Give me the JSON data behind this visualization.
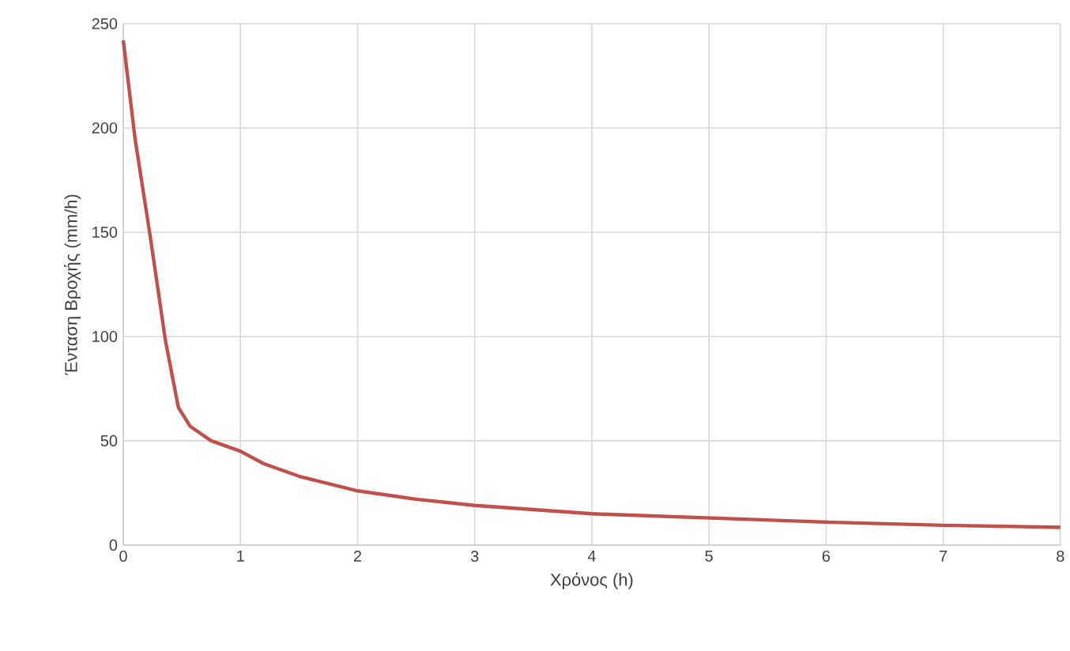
{
  "chart_data": {
    "type": "line",
    "xlabel": "Χρόνος (h)",
    "ylabel": "Ένταση Βροχής (mm/h)",
    "series": [
      {
        "color": "#c0504d",
        "x": [
          0,
          0.1,
          0.23,
          0.36,
          0.47,
          0.57,
          0.75,
          1,
          1.2,
          1.5,
          2,
          2.5,
          3,
          3.5,
          4,
          5,
          6,
          7,
          8
        ],
        "values": [
          242,
          195,
          148,
          98,
          66,
          57,
          50,
          45,
          39,
          33,
          26,
          22,
          19,
          17,
          15,
          13,
          11,
          9.5,
          8.5
        ]
      }
    ],
    "xlim": [
      0,
      8
    ],
    "ylim": [
      0,
      250
    ],
    "xticks": [
      0,
      1,
      2,
      3,
      4,
      5,
      6,
      7,
      8
    ],
    "yticks": [
      0,
      50,
      100,
      150,
      200,
      250
    ],
    "grid": true,
    "marker": "none",
    "line_style": "solid"
  }
}
